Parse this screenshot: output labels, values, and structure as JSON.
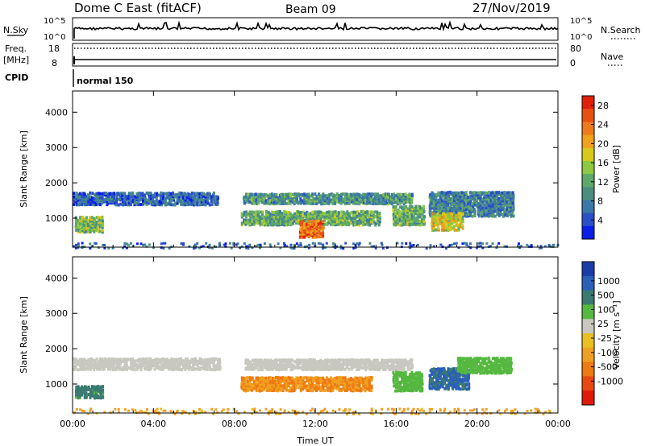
{
  "header": {
    "title": "Dome C East (fitACF)",
    "beam": "Beam 09",
    "date": "27/Nov/2019"
  },
  "status_panels": {
    "nsky_label": "N.Sky",
    "nsearch_label": "N.Search",
    "noise_ticks_left": [
      "10^5",
      "10^0"
    ],
    "noise_ticks_right": [
      "10^5",
      "10^0"
    ],
    "freq_label": "Freq.",
    "freq_unit": "[MHz]",
    "freq_ticks": [
      "18",
      "8"
    ],
    "nave_label": "Nave",
    "nave_ticks": [
      "80",
      "0"
    ],
    "cpid_label": "CPID",
    "cpid_value": "normal 150"
  },
  "chart_data": [
    {
      "type": "heatmap",
      "name": "power",
      "ylabel": "Slant Range [km]",
      "xlabel": "Time UT",
      "x_ticks": [
        "00:00",
        "04:00",
        "08:00",
        "12:00",
        "16:00",
        "20:00",
        "00:00"
      ],
      "y_ticks": [
        1000,
        2000,
        3000,
        4000
      ],
      "ylim": [
        180,
        4600
      ],
      "xlim_hours": [
        0,
        24
      ],
      "colorbar": {
        "label": "Power [dB]",
        "ticks": [
          "4",
          "8",
          "12",
          "16",
          "20",
          "24",
          "28"
        ],
        "range": [
          0,
          30
        ],
        "colors": [
          "#0a1ee8",
          "#2a50c8",
          "#3a78a8",
          "#4a8e80",
          "#5fa86a",
          "#8cc840",
          "#d8c81c",
          "#f0a01a",
          "#ee7a1a",
          "#e85012",
          "#e02008"
        ]
      },
      "echo_regions": [
        {
          "t": [
            0.0,
            7.2
          ],
          "r": [
            1420,
            1780
          ],
          "value": 6
        },
        {
          "t": [
            0.1,
            1.5
          ],
          "r": [
            650,
            1100
          ],
          "value": 14
        },
        {
          "t": [
            8.4,
            16.8
          ],
          "r": [
            1450,
            1750
          ],
          "value": 10
        },
        {
          "t": [
            8.3,
            15.2
          ],
          "r": [
            850,
            1250
          ],
          "value": 12
        },
        {
          "t": [
            11.2,
            12.4
          ],
          "r": [
            500,
            1000
          ],
          "value": 24
        },
        {
          "t": [
            15.8,
            17.4
          ],
          "r": [
            850,
            1400
          ],
          "value": 12
        },
        {
          "t": [
            17.6,
            21.8
          ],
          "r": [
            1100,
            1800
          ],
          "value": 8
        },
        {
          "t": [
            17.7,
            19.3
          ],
          "r": [
            700,
            1200
          ],
          "value": 18
        },
        {
          "t": [
            0.0,
            24.0
          ],
          "r": [
            180,
            350
          ],
          "value": 6
        }
      ]
    },
    {
      "type": "heatmap",
      "name": "velocity",
      "ylabel": "Slant Range [km]",
      "xlabel": "Time UT",
      "x_ticks": [
        "00:00",
        "04:00",
        "08:00",
        "12:00",
        "16:00",
        "20:00",
        "00:00"
      ],
      "y_ticks": [
        1000,
        2000,
        3000,
        4000
      ],
      "ylim": [
        180,
        4600
      ],
      "xlim_hours": [
        0,
        24
      ],
      "colorbar": {
        "label": "Velocity [m s⁻¹]",
        "ticks": [
          "1000",
          "500",
          "100",
          "25",
          "-25",
          "-100",
          "-500",
          "-1000"
        ],
        "colors": [
          "#1a3ca8",
          "#2a60b8",
          "#3a7a70",
          "#55b840",
          "#c8c8c0",
          "#e8c020",
          "#f0a020",
          "#ee7a12",
          "#e84810",
          "#e01a08"
        ]
      },
      "echo_regions": [
        {
          "t": [
            0.0,
            7.3
          ],
          "r": [
            1450,
            1780
          ],
          "value": 0
        },
        {
          "t": [
            0.1,
            1.5
          ],
          "r": [
            650,
            1000
          ],
          "value": 150
        },
        {
          "t": [
            8.5,
            16.8
          ],
          "r": [
            1450,
            1750
          ],
          "value": 0
        },
        {
          "t": [
            8.3,
            14.8
          ],
          "r": [
            850,
            1250
          ],
          "value": -300
        },
        {
          "t": [
            15.8,
            17.3
          ],
          "r": [
            850,
            1400
          ],
          "value": 50
        },
        {
          "t": [
            17.6,
            19.6
          ],
          "r": [
            900,
            1500
          ],
          "value": 600
        },
        {
          "t": [
            19.0,
            21.7
          ],
          "r": [
            1350,
            1800
          ],
          "value": 50
        },
        {
          "t": [
            0.0,
            24.0
          ],
          "r": [
            180,
            350
          ],
          "value": -150
        }
      ]
    }
  ]
}
